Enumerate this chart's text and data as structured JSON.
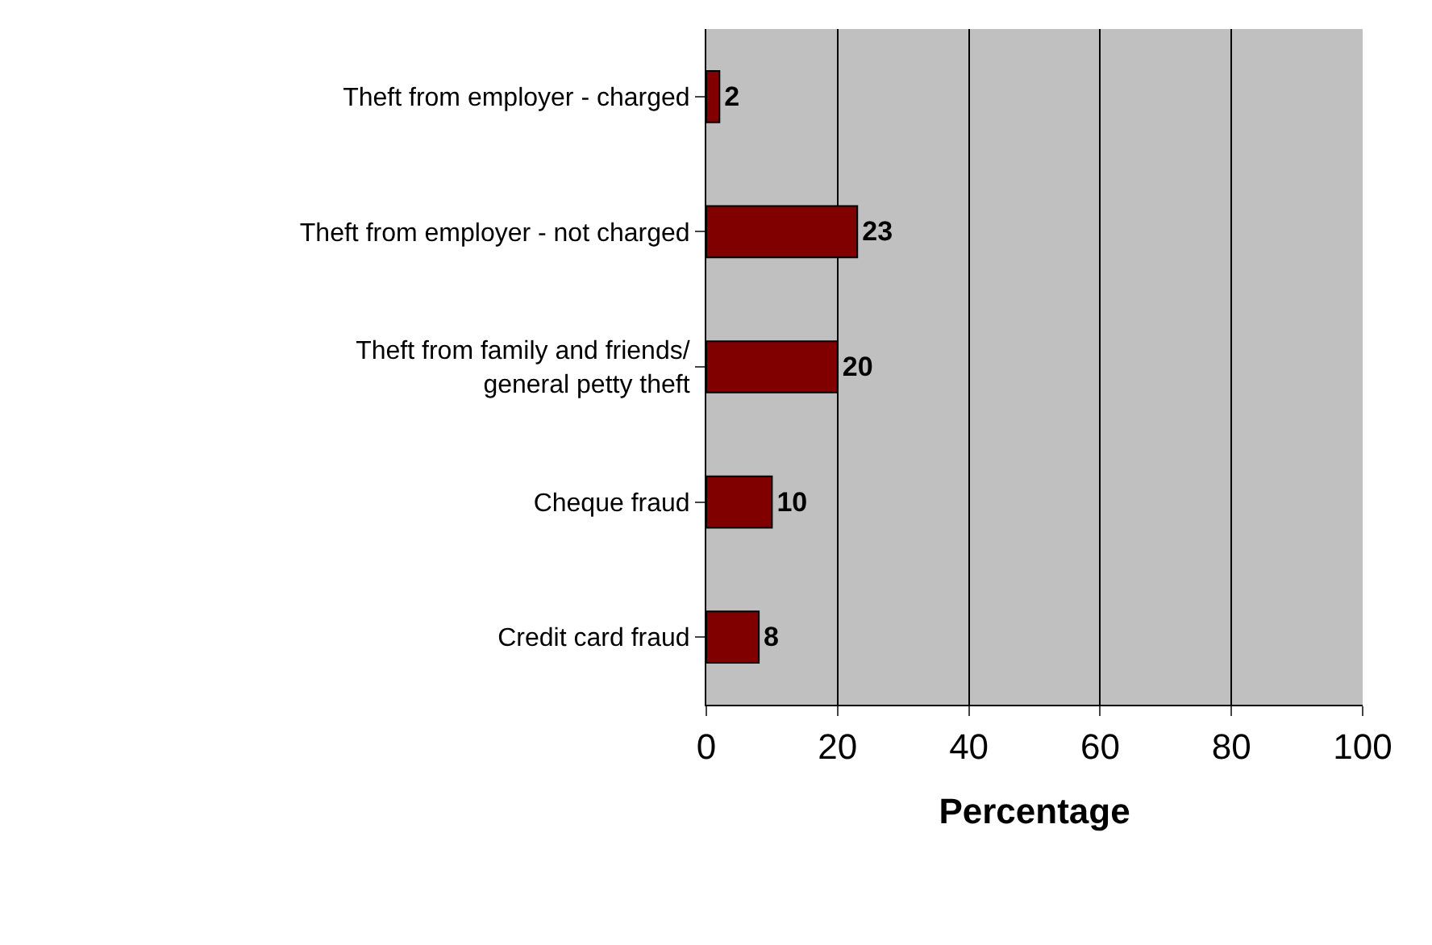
{
  "chart_data": {
    "type": "bar",
    "orientation": "horizontal",
    "categories": [
      "Theft from employer - charged",
      "Theft from employer - not charged",
      "Theft from family and friends/ general petty theft",
      "Cheque fraud",
      "Credit card fraud"
    ],
    "values": [
      2,
      23,
      20,
      10,
      8
    ],
    "color": "#800000",
    "xlabel": "Percentage",
    "xlim": [
      0,
      100
    ],
    "xticks": [
      0,
      20,
      40,
      60,
      80,
      100
    ],
    "grid": "x",
    "data_labels": true
  }
}
